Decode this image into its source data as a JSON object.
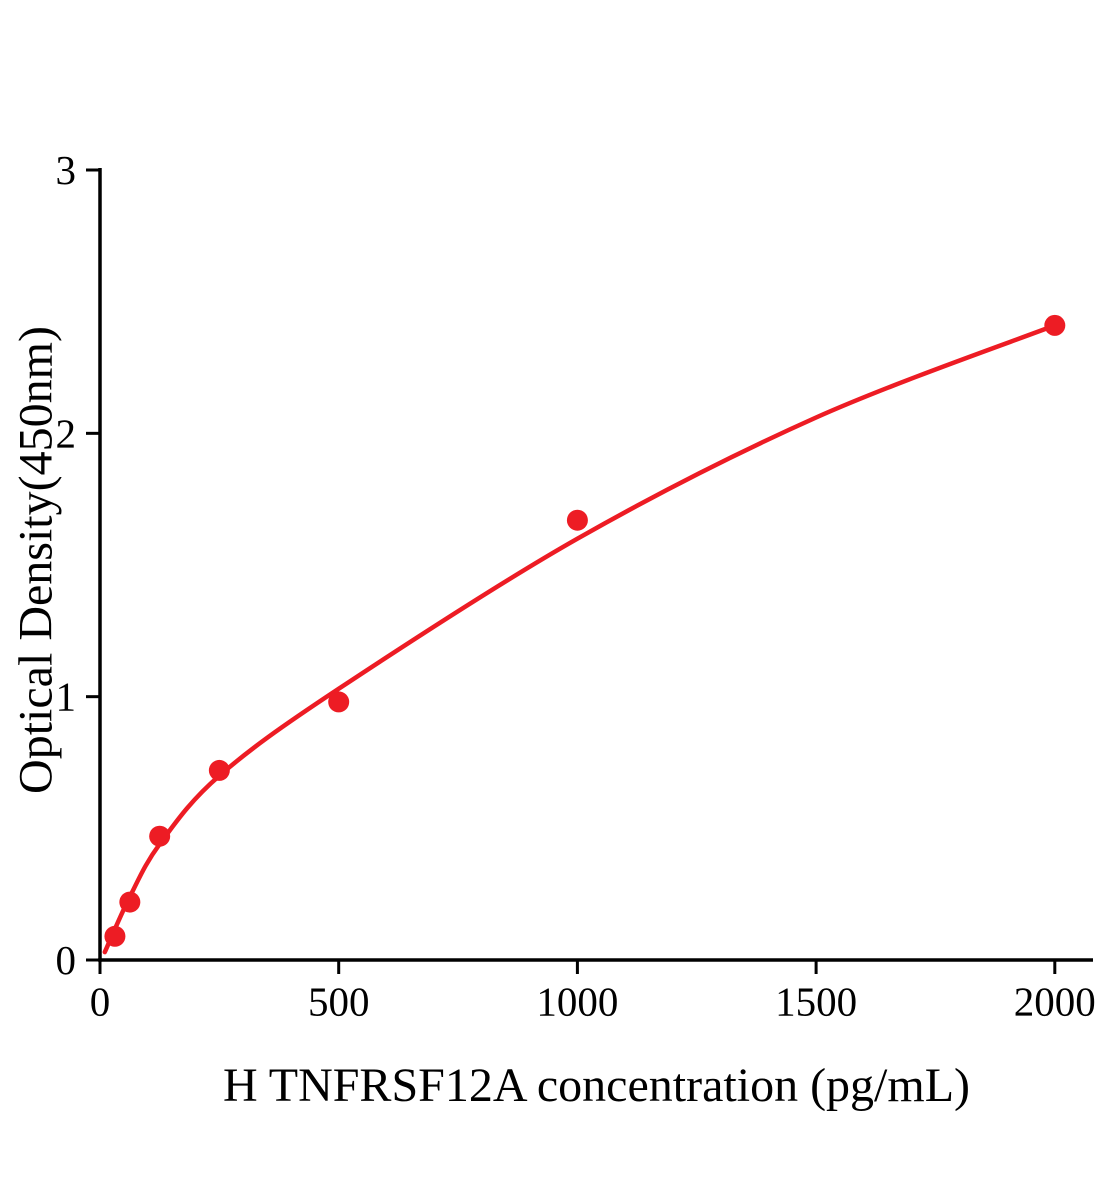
{
  "figure": {
    "background_color": "#ffffff",
    "accent_color": "#ED1C24"
  },
  "chart_data": {
    "type": "scatter",
    "title": "",
    "xlabel": "H TNFRSF12A concentration (pg/mL)",
    "ylabel": "Optical Density(450nm)",
    "xlim": [
      0,
      2080
    ],
    "ylim": [
      0,
      3
    ],
    "xticks": [
      0,
      500,
      1000,
      1500,
      2000
    ],
    "yticks": [
      0,
      1,
      2,
      3
    ],
    "grid": false,
    "legend": "none",
    "axis_color": "#000000",
    "series": [
      {
        "name": "H TNFRSF12A standard points",
        "type": "scatter",
        "color": "#ED1C24",
        "points": [
          {
            "x": 31.25,
            "y": 0.09
          },
          {
            "x": 62.5,
            "y": 0.22
          },
          {
            "x": 125,
            "y": 0.47
          },
          {
            "x": 250,
            "y": 0.72
          },
          {
            "x": 500,
            "y": 0.98
          },
          {
            "x": 1000,
            "y": 1.67
          },
          {
            "x": 2000,
            "y": 2.41
          }
        ]
      },
      {
        "name": "fitted standard curve",
        "type": "line",
        "color": "#ED1C24",
        "points": [
          {
            "x": 10,
            "y": 0.03
          },
          {
            "x": 62.5,
            "y": 0.24
          },
          {
            "x": 125,
            "y": 0.44
          },
          {
            "x": 250,
            "y": 0.7
          },
          {
            "x": 500,
            "y": 1.03
          },
          {
            "x": 1000,
            "y": 1.6
          },
          {
            "x": 1500,
            "y": 2.06
          },
          {
            "x": 2000,
            "y": 2.41
          }
        ]
      }
    ]
  }
}
